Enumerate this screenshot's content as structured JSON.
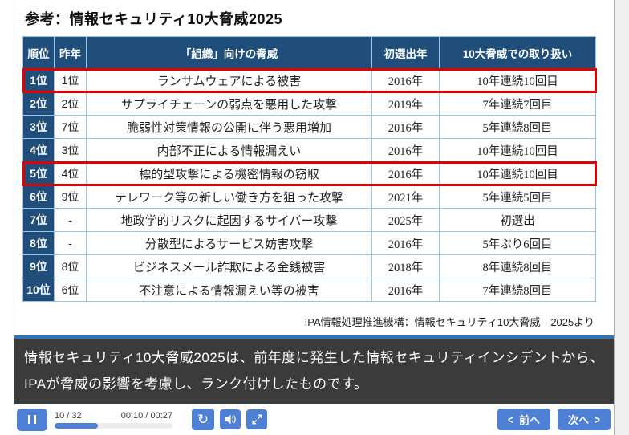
{
  "slide": {
    "title": "参考：情報セキュリティ10大脅威2025",
    "source": "IPA情報処理推進機構：情報セキュリティ10大脅威　2025より",
    "table": {
      "headers": [
        "順位",
        "昨年",
        "「組織」向けの脅威",
        "初選出年",
        "10大脅威での取り扱い"
      ],
      "rows": [
        {
          "rank": "1位",
          "last_year": "1位",
          "threat": "ランサムウェアによる被害",
          "first_year": "2016年",
          "treatment": "10年連続10回目",
          "highlighted": true
        },
        {
          "rank": "2位",
          "last_year": "2位",
          "threat": "サプライチェーンの弱点を悪用した攻撃",
          "first_year": "2019年",
          "treatment": "7年連続7回目",
          "highlighted": false
        },
        {
          "rank": "3位",
          "last_year": "7位",
          "threat": "脆弱性対策情報の公開に伴う悪用増加",
          "first_year": "2016年",
          "treatment": "5年連続8回目",
          "highlighted": false
        },
        {
          "rank": "4位",
          "last_year": "3位",
          "threat": "内部不正による情報漏えい",
          "first_year": "2016年",
          "treatment": "10年連続10回目",
          "highlighted": false
        },
        {
          "rank": "5位",
          "last_year": "4位",
          "threat": "標的型攻撃による機密情報の窃取",
          "first_year": "2016年",
          "treatment": "10年連続10回目",
          "highlighted": true
        },
        {
          "rank": "6位",
          "last_year": "9位",
          "threat": "テレワーク等の新しい働き方を狙った攻撃",
          "first_year": "2021年",
          "treatment": "5年連続5回目",
          "highlighted": false
        },
        {
          "rank": "7位",
          "last_year": "-",
          "threat": "地政学的リスクに起因するサイバー攻撃",
          "first_year": "2025年",
          "treatment": "初選出",
          "highlighted": false
        },
        {
          "rank": "8位",
          "last_year": "-",
          "threat": "分散型によるサービス妨害攻撃",
          "first_year": "2016年",
          "treatment": "5年ぶり6回目",
          "highlighted": false
        },
        {
          "rank": "9位",
          "last_year": "8位",
          "threat": "ビジネスメール詐欺による金銭被害",
          "first_year": "2018年",
          "treatment": "8年連続8回目",
          "highlighted": false
        },
        {
          "rank": "10位",
          "last_year": "6位",
          "threat": "不注意による情報漏えい等の被害",
          "first_year": "2016年",
          "treatment": "7年連続8回目",
          "highlighted": false
        }
      ]
    }
  },
  "caption": {
    "text": "情報セキュリティ10大脅威2025は、前年度に発生した情報セキュリティインシデントから、IPAが脅威の影響を考慮し、ランク付けしたものです。"
  },
  "player": {
    "slide_counter": "10 / 32",
    "time": "00:10 / 00:27",
    "progress_percent": 37,
    "replay_glyph": "↻",
    "prev_chevron": "<",
    "next_chevron": ">",
    "prev_label": "前へ",
    "next_label": "次へ"
  },
  "icons": {
    "pause": "pause-icon",
    "replay": "replay-icon",
    "volume": "volume-icon",
    "fullscreen": "fullscreen-icon"
  },
  "colors": {
    "header_navy": "#1f4e7a",
    "table_border_blue": "#9dc3e6",
    "highlight_red": "#e00000",
    "button_blue": "#4e80d6",
    "caption_bg": "#3b3b3b",
    "divider_blue": "#2e74b5"
  }
}
